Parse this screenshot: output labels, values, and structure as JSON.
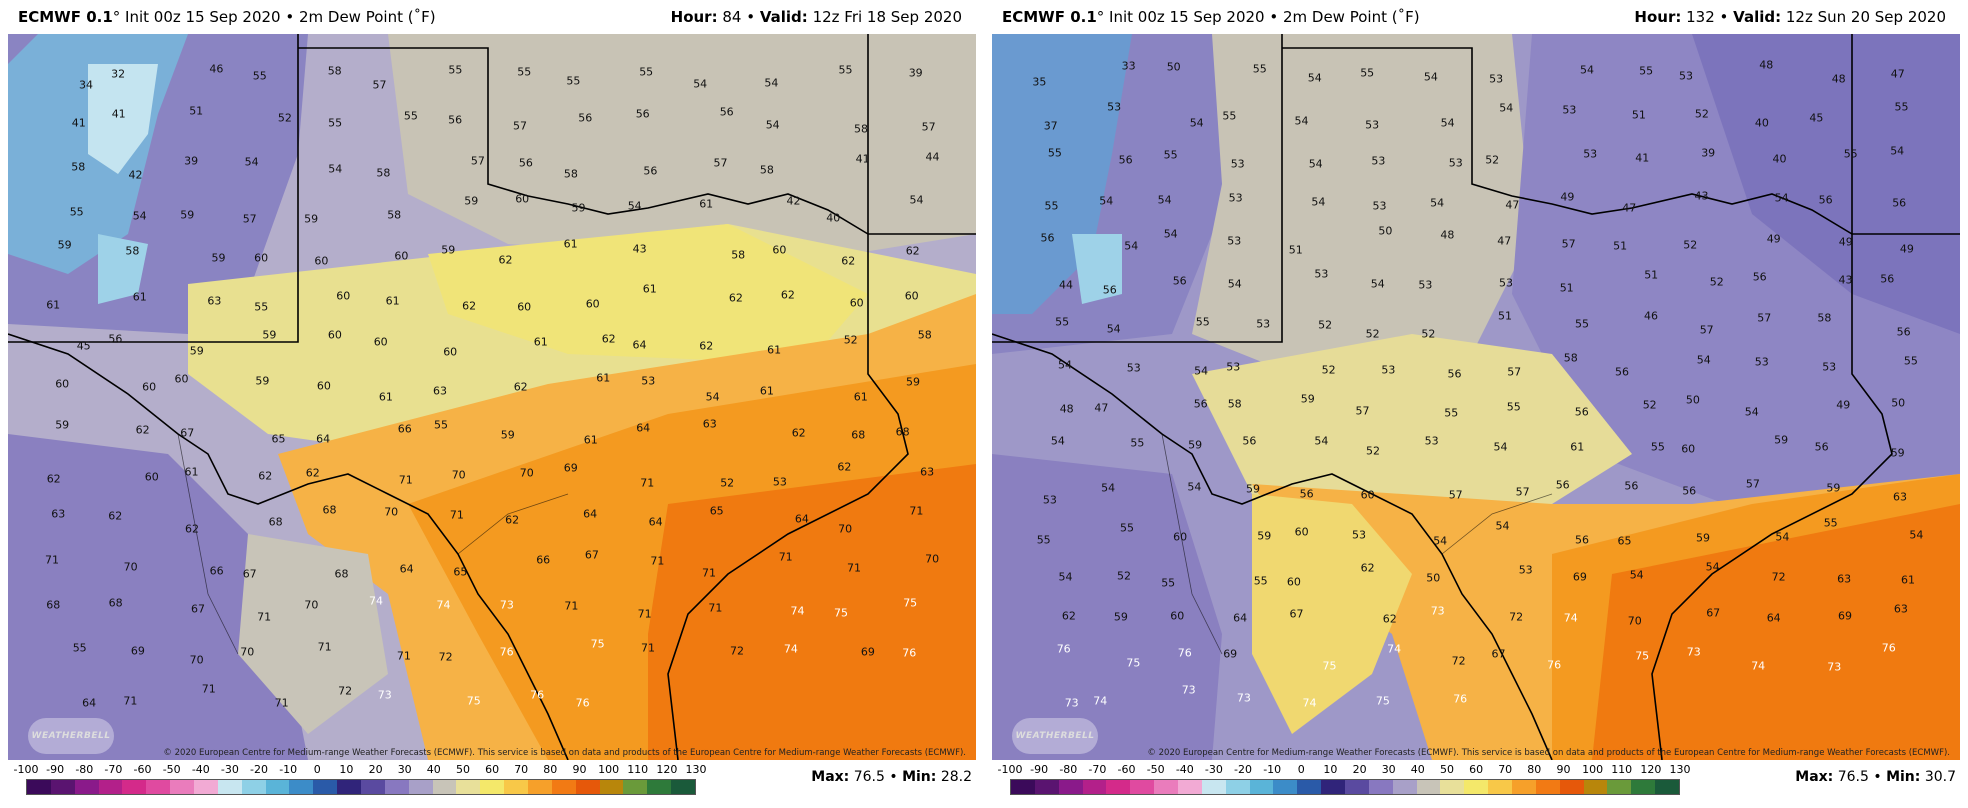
{
  "panels": [
    {
      "model": "ECMWF 0.1",
      "title_rest": "° Init 00z 15 Sep 2020 • 2m Dew Point (˚F)",
      "hour_label": "Hour:",
      "hour": "84",
      "valid_label": "Valid:",
      "valid": "12z Fri 18 Sep 2020",
      "max_label": "Max:",
      "max": "76.5",
      "min_label": "Min:",
      "min": "28.2",
      "numbers": [
        "34",
        "32",
        "46",
        "55",
        "58",
        "57",
        "55",
        "55",
        "55",
        "55",
        "54",
        "54",
        "55",
        "39",
        "41",
        "41",
        "51",
        "52",
        "55",
        "55",
        "56",
        "57",
        "56",
        "56",
        "56",
        "54",
        "58",
        "57",
        "58",
        "42",
        "39",
        "54",
        "54",
        "58",
        "57",
        "56",
        "58",
        "56",
        "57",
        "58",
        "41",
        "44",
        "55",
        "54",
        "59",
        "57",
        "59",
        "58",
        "59",
        "60",
        "59",
        "54",
        "61",
        "42",
        "40",
        "54",
        "59",
        "58",
        "59",
        "60",
        "60",
        "60",
        "59",
        "62",
        "61",
        "43",
        "58",
        "60",
        "62",
        "62",
        "61",
        "61",
        "63",
        "55",
        "60",
        "61",
        "62",
        "60",
        "60",
        "61",
        "62",
        "62",
        "60",
        "60",
        "45",
        "56",
        "59",
        "59",
        "60",
        "60",
        "60",
        "61",
        "62",
        "64",
        "62",
        "61",
        "52",
        "58",
        "60",
        "60",
        "60",
        "59",
        "60",
        "61",
        "63",
        "62",
        "61",
        "53",
        "54",
        "61",
        "61",
        "59",
        "59",
        "62",
        "67",
        "65",
        "64",
        "66",
        "55",
        "59",
        "61",
        "64",
        "63",
        "62",
        "68",
        "68",
        "62",
        "60",
        "61",
        "62",
        "62",
        "71",
        "70",
        "70",
        "69",
        "71",
        "52",
        "53",
        "62",
        "63",
        "63",
        "62",
        "62",
        "68",
        "68",
        "70",
        "71",
        "62",
        "64",
        "64",
        "65",
        "64",
        "70",
        "71",
        "71",
        "70",
        "66",
        "67",
        "68",
        "64",
        "65",
        "66",
        "67",
        "71",
        "71",
        "71",
        "71",
        "70",
        "68",
        "68",
        "67",
        "71",
        "70",
        "74",
        "74",
        "73",
        "71",
        "71",
        "71",
        "74",
        "75",
        "75",
        "55",
        "69",
        "70",
        "70",
        "71",
        "71",
        "72",
        "76",
        "75",
        "71",
        "72",
        "74",
        "69",
        "76",
        "64",
        "71",
        "71",
        "71",
        "72",
        "73",
        "75",
        "76",
        "76"
      ],
      "copyright": "© 2020 European Centre for Medium-range Weather Forecasts (ECMWF). This service is based on data and products of the European Centre for Medium-range Weather Forecasts (ECMWF).",
      "watermark": "WEATHERBELL"
    },
    {
      "model": "ECMWF 0.1",
      "title_rest": "° Init 00z 15 Sep 2020 • 2m Dew Point (˚F)",
      "hour_label": "Hour:",
      "hour": "132",
      "valid_label": "Valid:",
      "valid": "12z Sun 20 Sep 2020",
      "max_label": "Max:",
      "max": "76.5",
      "min_label": "Min:",
      "min": "30.7",
      "numbers": [
        "35",
        "33",
        "50",
        "55",
        "54",
        "55",
        "54",
        "53",
        "54",
        "55",
        "53",
        "48",
        "48",
        "47",
        "37",
        "53",
        "54",
        "55",
        "54",
        "53",
        "54",
        "54",
        "53",
        "51",
        "52",
        "40",
        "45",
        "55",
        "55",
        "56",
        "55",
        "53",
        "54",
        "53",
        "53",
        "52",
        "53",
        "41",
        "39",
        "40",
        "55",
        "54",
        "55",
        "54",
        "54",
        "53",
        "54",
        "53",
        "54",
        "47",
        "49",
        "47",
        "43",
        "54",
        "56",
        "56",
        "56",
        "54",
        "54",
        "53",
        "51",
        "50",
        "48",
        "47",
        "57",
        "51",
        "52",
        "49",
        "49",
        "49",
        "44",
        "56",
        "56",
        "54",
        "53",
        "54",
        "53",
        "53",
        "51",
        "51",
        "52",
        "56",
        "43",
        "56",
        "55",
        "54",
        "55",
        "53",
        "52",
        "52",
        "52",
        "51",
        "55",
        "46",
        "57",
        "57",
        "58",
        "56",
        "54",
        "53",
        "54",
        "53",
        "52",
        "53",
        "56",
        "57",
        "58",
        "56",
        "54",
        "53",
        "53",
        "55",
        "48",
        "47",
        "56",
        "58",
        "59",
        "57",
        "55",
        "55",
        "56",
        "52",
        "50",
        "54",
        "49",
        "50",
        "54",
        "55",
        "59",
        "56",
        "54",
        "52",
        "53",
        "54",
        "61",
        "55",
        "60",
        "59",
        "56",
        "59",
        "53",
        "54",
        "54",
        "59",
        "56",
        "60",
        "57",
        "57",
        "56",
        "56",
        "56",
        "57",
        "59",
        "63",
        "55",
        "55",
        "60",
        "59",
        "60",
        "53",
        "54",
        "54",
        "56",
        "65",
        "59",
        "54",
        "55",
        "54",
        "54",
        "52",
        "55",
        "55",
        "60",
        "62",
        "50",
        "53",
        "69",
        "54",
        "54",
        "72",
        "63",
        "61",
        "62",
        "59",
        "60",
        "64",
        "67",
        "62",
        "73",
        "72",
        "74",
        "70",
        "67",
        "64",
        "69",
        "63",
        "76",
        "75",
        "76",
        "69",
        "75",
        "74",
        "72",
        "67",
        "76",
        "75",
        "73",
        "74",
        "73",
        "76",
        "73",
        "74",
        "73",
        "73",
        "74",
        "75",
        "76"
      ],
      "copyright": "© 2020 European Centre for Medium-range Weather Forecasts (ECMWF). This service is based on data and products of the European Centre for Medium-range Weather Forecasts (ECMWF).",
      "watermark": "WEATHERBELL"
    }
  ],
  "colorbar": {
    "ticks": [
      "-100",
      "-90",
      "-80",
      "-70",
      "-60",
      "-50",
      "-40",
      "-30",
      "-20",
      "-10",
      "0",
      "10",
      "20",
      "30",
      "40",
      "50",
      "60",
      "70",
      "80",
      "90",
      "100",
      "110",
      "120",
      "130"
    ],
    "colors": [
      "#3b0a5a",
      "#5a1470",
      "#8a1a8a",
      "#b3208a",
      "#d42a8a",
      "#e04aa0",
      "#ea7cbc",
      "#f2aad4",
      "#c8e6f0",
      "#8ed0e6",
      "#5ab4d8",
      "#3c8cc8",
      "#2a5aa8",
      "#30247a",
      "#5a4aa0",
      "#8878c0",
      "#a8a0c8",
      "#c8c4b8",
      "#e8e09a",
      "#f4e86a",
      "#f8c848",
      "#f6a02a",
      "#f27a14",
      "#e6580a",
      "#b8860b",
      "#6a9a3a",
      "#2e7a3a",
      "#1a5a3a"
    ]
  }
}
